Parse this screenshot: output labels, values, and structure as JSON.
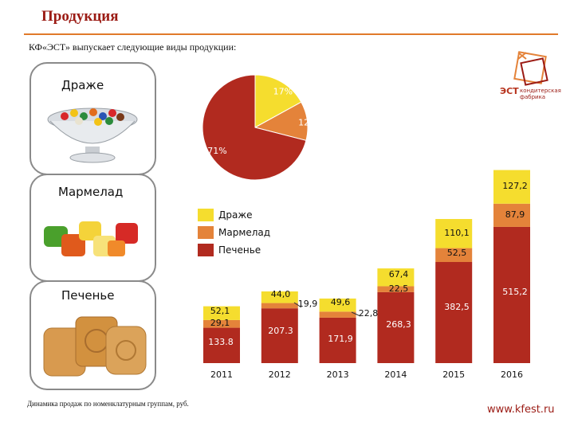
{
  "header": {
    "title": "Продукция",
    "subtitle": "КФ«ЭСТ» выпускает следующие виды продукции:"
  },
  "cards": [
    {
      "label": "Драже"
    },
    {
      "label": "Мармелад"
    },
    {
      "label": "Печенье"
    }
  ],
  "logo": {
    "mark": "ЭСТ",
    "line1": "кондитерская",
    "line2": "фабрика"
  },
  "footer": {
    "note": "Динамика продаж по номенклатурным группам, руб.",
    "url": "www.kfest.ru"
  },
  "colors": {
    "dragee": "#f5dd2e",
    "marmalade": "#e4833a",
    "cookies": "#b12a1f"
  },
  "chart_data": [
    {
      "type": "pie",
      "labels": [
        "17%",
        "12%",
        "71%"
      ],
      "values": [
        17,
        12,
        71
      ],
      "series_keys": [
        "dragee",
        "marmalade",
        "cookies"
      ]
    },
    {
      "type": "bar",
      "stacked": true,
      "categories": [
        "2011",
        "2012",
        "2013",
        "2014",
        "2015",
        "2016"
      ],
      "series": [
        {
          "name": "Печенье",
          "key": "cookies",
          "values": [
            133.8,
            207.3,
            171.9,
            268.3,
            382.5,
            515.2
          ],
          "labels": [
            "133.8",
            "207.3",
            "171,9",
            "268,3",
            "382,5",
            "515,2"
          ]
        },
        {
          "name": "Мармелад",
          "key": "marmalade",
          "values": [
            29.1,
            19.9,
            22.8,
            22.5,
            52.5,
            87.9
          ],
          "labels": [
            "29,1",
            "19,9",
            "22,8",
            "22,5",
            "52,5",
            "87,9"
          ]
        },
        {
          "name": "Драже",
          "key": "dragee",
          "values": [
            52.1,
            44.0,
            49.6,
            67.4,
            110.1,
            127.2
          ],
          "labels": [
            "52,1",
            "44,0",
            "49,6",
            "67,4",
            "110,1",
            "127,2"
          ]
        }
      ],
      "legend": [
        "Драже",
        "Мармелад",
        "Печенье"
      ],
      "grid": false
    }
  ]
}
